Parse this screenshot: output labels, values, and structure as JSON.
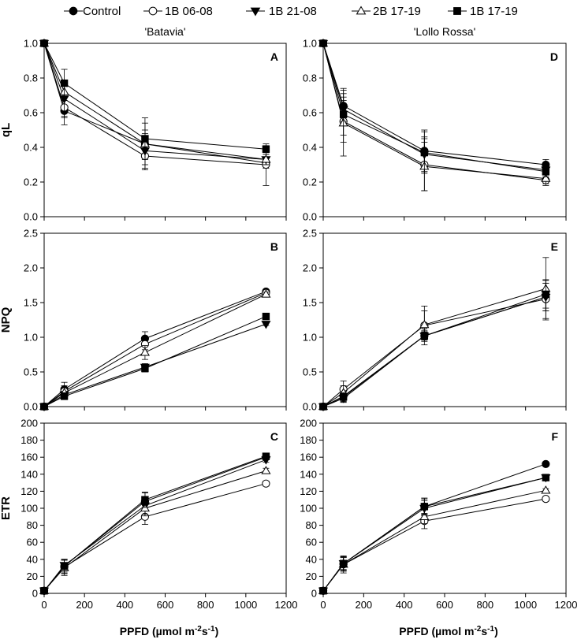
{
  "chart_data": {
    "type": "line",
    "legend": [
      {
        "name": "Control",
        "marker": "filled-circle"
      },
      {
        "name": "1B 06-08",
        "marker": "open-circle"
      },
      {
        "name": "1B 21-08",
        "marker": "filled-triangle-down"
      },
      {
        "name": "2B 17-19",
        "marker": "open-triangle-up"
      },
      {
        "name": "1B 17-19",
        "marker": "filled-square"
      }
    ],
    "columns": [
      "'Batavia'",
      "'Lollo Rossa'"
    ],
    "xlabel": {
      "main": "PPFD (µmol m",
      "sup1": "-2",
      "mid": "s",
      "sup2": "-1",
      "end": ")"
    },
    "x": [
      0,
      100,
      500,
      1100
    ],
    "xlim": [
      0,
      1200
    ],
    "xticks": [
      "0",
      "200",
      "400",
      "600",
      "800",
      "1000",
      "1200"
    ],
    "rows": [
      {
        "ylabel": "qL",
        "ylim": [
          0,
          1.0
        ],
        "yticks": [
          "0.0",
          "0.2",
          "0.4",
          "0.6",
          "0.8",
          "1.0"
        ]
      },
      {
        "ylabel": "NPQ",
        "ylim": [
          0,
          2.5
        ],
        "yticks": [
          "0.0",
          "0.5",
          "1.0",
          "1.5",
          "2.0",
          "2.5"
        ]
      },
      {
        "ylabel": "ETR",
        "ylim": [
          0,
          200
        ],
        "yticks": [
          "0",
          "20",
          "40",
          "60",
          "80",
          "100",
          "120",
          "140",
          "160",
          "180",
          "200"
        ]
      }
    ],
    "panels": [
      {
        "letter": "A",
        "cultivar": "'Batavia'",
        "variable": "qL",
        "series": [
          {
            "name": "Control",
            "values": [
              1.0,
              0.61,
              0.42,
              0.31
            ],
            "err": [
              0,
              0.08,
              0.08,
              0.03
            ]
          },
          {
            "name": "1B 06-08",
            "values": [
              1.0,
              0.63,
              0.35,
              0.3
            ],
            "err": [
              0,
              0.06,
              0.08,
              0.12
            ]
          },
          {
            "name": "1B 21-08",
            "values": [
              1.0,
              0.68,
              0.38,
              0.33
            ],
            "err": [
              0,
              0.1,
              0.1,
              0.03
            ]
          },
          {
            "name": "2B 17-19",
            "values": [
              1.0,
              0.72,
              0.42,
              0.33
            ],
            "err": [
              0,
              0.05,
              0.12,
              0.03
            ]
          },
          {
            "name": "1B 17-19",
            "values": [
              1.0,
              0.77,
              0.45,
              0.39
            ],
            "err": [
              0,
              0.08,
              0.12,
              0.02
            ]
          }
        ]
      },
      {
        "letter": "D",
        "cultivar": "'Lollo Rossa'",
        "variable": "qL",
        "series": [
          {
            "name": "Control",
            "values": [
              1.0,
              0.64,
              0.38,
              0.3
            ],
            "err": [
              0,
              0.1,
              0.12,
              0.03
            ]
          },
          {
            "name": "1B 06-08",
            "values": [
              1.0,
              0.55,
              0.3,
              0.21
            ],
            "err": [
              0,
              0.12,
              0.15,
              0.03
            ]
          },
          {
            "name": "1B 21-08",
            "values": [
              1.0,
              0.62,
              0.36,
              0.27
            ],
            "err": [
              0,
              0.07,
              0.1,
              0.03
            ]
          },
          {
            "name": "2B 17-19",
            "values": [
              1.0,
              0.54,
              0.29,
              0.22
            ],
            "err": [
              0,
              0.19,
              0.14,
              0.03
            ]
          },
          {
            "name": "1B 17-19",
            "values": [
              1.0,
              0.59,
              0.37,
              0.26
            ],
            "err": [
              0,
              0.12,
              0.12,
              0.03
            ]
          }
        ]
      },
      {
        "letter": "B",
        "cultivar": "'Batavia'",
        "variable": "NPQ",
        "series": [
          {
            "name": "Control",
            "values": [
              0.0,
              0.25,
              0.98,
              1.66
            ],
            "err": [
              0,
              0.1,
              0.1,
              0.03
            ]
          },
          {
            "name": "1B 06-08",
            "values": [
              0.0,
              0.22,
              0.9,
              1.64
            ],
            "err": [
              0,
              0.08,
              0.08,
              0.03
            ]
          },
          {
            "name": "1B 21-08",
            "values": [
              0.0,
              0.17,
              0.57,
              1.19
            ],
            "err": [
              0,
              0.05,
              0.05,
              0.02
            ]
          },
          {
            "name": "2B 17-19",
            "values": [
              0.0,
              0.2,
              0.78,
              1.62
            ],
            "err": [
              0,
              0.07,
              0.1,
              0.03
            ]
          },
          {
            "name": "1B 17-19",
            "values": [
              0.0,
              0.15,
              0.55,
              1.3
            ],
            "err": [
              0,
              0.05,
              0.05,
              0.02
            ]
          }
        ]
      },
      {
        "letter": "E",
        "cultivar": "'Lollo Rossa'",
        "variable": "NPQ",
        "series": [
          {
            "name": "Control",
            "values": [
              0.0,
              0.15,
              1.02,
              1.58
            ],
            "err": [
              0,
              0.08,
              0.08,
              0.2
            ]
          },
          {
            "name": "1B 06-08",
            "values": [
              0.0,
              0.25,
              1.17,
              1.55
            ],
            "err": [
              0,
              0.12,
              0.28,
              0.28
            ]
          },
          {
            "name": "1B 21-08",
            "values": [
              0.0,
              0.12,
              1.02,
              1.58
            ],
            "err": [
              0,
              0.06,
              0.06,
              0.2
            ]
          },
          {
            "name": "2B 17-19",
            "values": [
              0.0,
              0.2,
              1.18,
              1.7
            ],
            "err": [
              0,
              0.1,
              0.2,
              0.45
            ]
          },
          {
            "name": "1B 17-19",
            "values": [
              0.0,
              0.14,
              1.02,
              1.62
            ],
            "err": [
              0,
              0.06,
              0.06,
              0.2
            ]
          }
        ]
      },
      {
        "letter": "C",
        "cultivar": "'Batavia'",
        "variable": "ETR",
        "series": [
          {
            "name": "Control",
            "values": [
              3,
              32,
              108,
              160
            ],
            "err": [
              0,
              8,
              10,
              3
            ]
          },
          {
            "name": "1B 06-08",
            "values": [
              3,
              31,
              90,
              129
            ],
            "err": [
              0,
              8,
              9,
              3
            ]
          },
          {
            "name": "1B 21-08",
            "values": [
              3,
              33,
              103,
              157
            ],
            "err": [
              0,
              7,
              10,
              3
            ]
          },
          {
            "name": "2B 17-19",
            "values": [
              3,
              30,
              100,
              144
            ],
            "err": [
              0,
              9,
              9,
              3
            ]
          },
          {
            "name": "1B 17-19",
            "values": [
              3,
              32,
              110,
              161
            ],
            "err": [
              0,
              8,
              9,
              3
            ]
          }
        ]
      },
      {
        "letter": "F",
        "cultivar": "'Lollo Rossa'",
        "variable": "ETR",
        "series": [
          {
            "name": "Control",
            "values": [
              3,
              35,
              102,
              152
            ],
            "err": [
              0,
              8,
              9,
              2
            ]
          },
          {
            "name": "1B 06-08",
            "values": [
              3,
              34,
              85,
              111
            ],
            "err": [
              0,
              8,
              9,
              2
            ]
          },
          {
            "name": "1B 21-08",
            "values": [
              3,
              35,
              100,
              136
            ],
            "err": [
              0,
              7,
              9,
              2
            ]
          },
          {
            "name": "2B 17-19",
            "values": [
              3,
              34,
              90,
              121
            ],
            "err": [
              0,
              10,
              8,
              2
            ]
          },
          {
            "name": "1B 17-19",
            "values": [
              3,
              35,
              102,
              136
            ],
            "err": [
              0,
              8,
              10,
              2
            ]
          }
        ]
      }
    ]
  }
}
